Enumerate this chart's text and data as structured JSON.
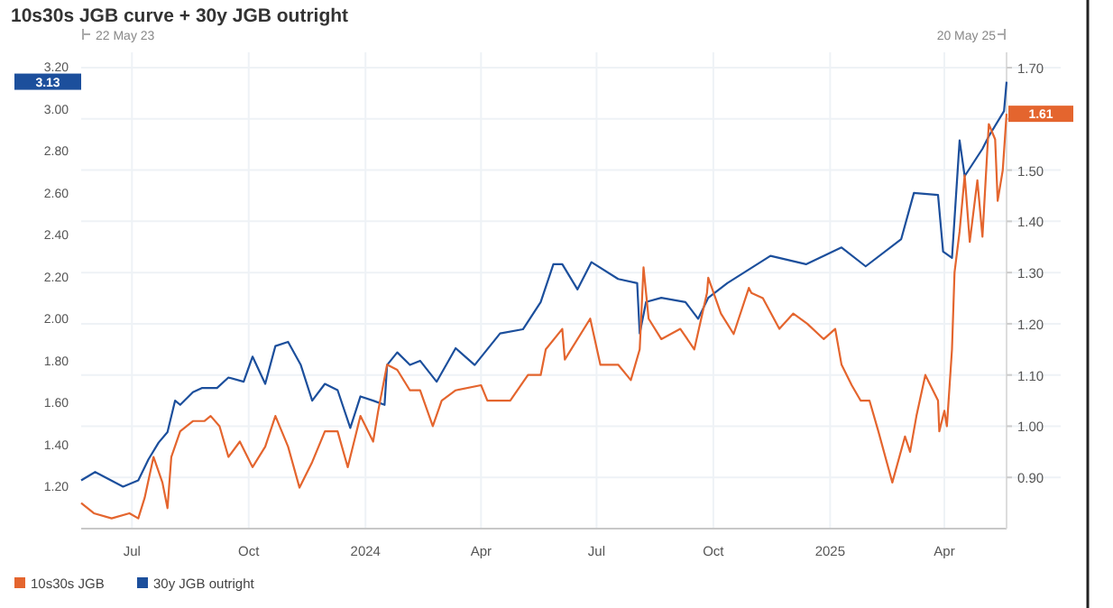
{
  "chart_data": {
    "type": "line",
    "title": "10s30s JGB curve + 30y JGB outright",
    "xlim": [
      "2023-05-22",
      "2025-05-20"
    ],
    "xticks": [
      {
        "value": "2023-07-01",
        "label": "Jul"
      },
      {
        "value": "2023-10-01",
        "label": "Oct"
      },
      {
        "value": "2024-01-01",
        "label": "2024"
      },
      {
        "value": "2024-04-01",
        "label": "Apr"
      },
      {
        "value": "2024-07-01",
        "label": "Jul"
      },
      {
        "value": "2024-10-01",
        "label": "Oct"
      },
      {
        "value": "2025-01-01",
        "label": "2025"
      },
      {
        "value": "2025-04-01",
        "label": "Apr"
      }
    ],
    "ylim": [
      1.0,
      3.27
    ],
    "yticks": [
      {
        "value": 1.2,
        "label": "1.20"
      },
      {
        "value": 1.4,
        "label": "1.40"
      },
      {
        "value": 1.6,
        "label": "1.60"
      },
      {
        "value": 1.8,
        "label": "1.80"
      },
      {
        "value": 2.0,
        "label": "2.00"
      },
      {
        "value": 2.2,
        "label": "2.20"
      },
      {
        "value": 2.4,
        "label": "2.40"
      },
      {
        "value": 2.6,
        "label": "2.60"
      },
      {
        "value": 2.8,
        "label": "2.80"
      },
      {
        "value": 3.0,
        "label": "3.00"
      },
      {
        "value": 3.2,
        "label": "3.20"
      }
    ],
    "y2lim": [
      0.8,
      1.73
    ],
    "y2ticks": [
      {
        "value": 0.9,
        "label": "0.90"
      },
      {
        "value": 1.0,
        "label": "1.00"
      },
      {
        "value": 1.1,
        "label": "1.10"
      },
      {
        "value": 1.2,
        "label": "1.20"
      },
      {
        "value": 1.3,
        "label": "1.30"
      },
      {
        "value": 1.4,
        "label": "1.40"
      },
      {
        "value": 1.5,
        "label": "1.50"
      },
      {
        "value": 1.6,
        "label": null
      },
      {
        "value": 1.7,
        "label": "1.70"
      }
    ],
    "grid": true,
    "legend": "bottom left",
    "line_style": "solid",
    "marker": "none",
    "annotations": [
      "22 May 23",
      "20 May 25",
      "3.13",
      "1.61"
    ],
    "series": [
      {
        "name": "30y JGB outright",
        "color": "#1c4f9c",
        "x": [
          "2023-05-22",
          "2023-06-02",
          "2023-06-24",
          "2023-07-06",
          "2023-07-14",
          "2023-07-22",
          "2023-07-29",
          "2023-08-04",
          "2023-08-08",
          "2023-08-18",
          "2023-08-25",
          "2023-09-06",
          "2023-09-15",
          "2023-09-27",
          "2023-10-04",
          "2023-10-14",
          "2023-10-22",
          "2023-11-01",
          "2023-11-11",
          "2023-11-20",
          "2023-11-30",
          "2023-12-10",
          "2023-12-20",
          "2023-12-28",
          "2024-01-07",
          "2024-01-16",
          "2024-01-18",
          "2024-01-26",
          "2024-02-05",
          "2024-02-13",
          "2024-02-26",
          "2024-03-12",
          "2024-03-27",
          "2024-04-16",
          "2024-05-04",
          "2024-05-18",
          "2024-05-28",
          "2024-06-04",
          "2024-06-16",
          "2024-06-27",
          "2024-07-18",
          "2024-08-02",
          "2024-08-04",
          "2024-08-09",
          "2024-08-21",
          "2024-09-09",
          "2024-09-19",
          "2024-09-27",
          "2024-10-12",
          "2024-11-15",
          "2024-12-13",
          "2025-01-10",
          "2025-01-29",
          "2025-02-26",
          "2025-03-08",
          "2025-03-27",
          "2025-03-31",
          "2025-04-07",
          "2025-04-13",
          "2025-04-17",
          "2025-05-01",
          "2025-05-06",
          "2025-05-18",
          "2025-05-20"
        ],
        "values": [
          1.23,
          1.27,
          1.2,
          1.23,
          1.33,
          1.41,
          1.46,
          1.61,
          1.59,
          1.65,
          1.67,
          1.67,
          1.72,
          1.7,
          1.82,
          1.69,
          1.87,
          1.89,
          1.78,
          1.61,
          1.69,
          1.66,
          1.48,
          1.63,
          1.61,
          1.59,
          1.78,
          1.84,
          1.78,
          1.8,
          1.7,
          1.86,
          1.78,
          1.93,
          1.95,
          2.08,
          2.26,
          2.26,
          2.14,
          2.27,
          2.19,
          2.17,
          1.93,
          2.08,
          2.1,
          2.08,
          2.0,
          2.1,
          2.17,
          2.3,
          2.26,
          2.34,
          2.25,
          2.38,
          2.6,
          2.59,
          2.32,
          2.29,
          2.85,
          2.68,
          2.81,
          2.87,
          2.99,
          3.13
        ]
      },
      {
        "name": "10s30s JGB",
        "color": "#e4652e",
        "axis": "y2",
        "x": [
          "2023-05-22",
          "2023-06-01",
          "2023-06-15",
          "2023-06-29",
          "2023-07-06",
          "2023-07-11",
          "2023-07-18",
          "2023-07-25",
          "2023-07-29",
          "2023-08-01",
          "2023-08-08",
          "2023-08-18",
          "2023-08-27",
          "2023-09-01",
          "2023-09-08",
          "2023-09-15",
          "2023-09-24",
          "2023-10-04",
          "2023-10-14",
          "2023-10-22",
          "2023-11-01",
          "2023-11-10",
          "2023-11-20",
          "2023-11-30",
          "2023-12-10",
          "2023-12-18",
          "2023-12-28",
          "2024-01-07",
          "2024-01-11",
          "2024-01-18",
          "2024-01-26",
          "2024-02-05",
          "2024-02-13",
          "2024-02-23",
          "2024-03-01",
          "2024-03-12",
          "2024-04-01",
          "2024-04-06",
          "2024-04-24",
          "2024-05-08",
          "2024-05-18",
          "2024-05-22",
          "2024-06-04",
          "2024-06-06",
          "2024-06-26",
          "2024-07-04",
          "2024-07-18",
          "2024-07-28",
          "2024-08-04",
          "2024-08-07",
          "2024-08-11",
          "2024-08-21",
          "2024-09-05",
          "2024-09-16",
          "2024-09-26",
          "2024-09-27",
          "2024-10-07",
          "2024-10-17",
          "2024-10-29",
          "2024-10-31",
          "2024-11-09",
          "2024-11-22",
          "2024-12-03",
          "2024-12-14",
          "2024-12-27",
          "2025-01-05",
          "2025-01-10",
          "2025-01-18",
          "2025-01-25",
          "2025-02-01",
          "2025-02-08",
          "2025-02-19",
          "2025-03-01",
          "2025-03-05",
          "2025-03-10",
          "2025-03-17",
          "2025-03-27",
          "2025-03-28",
          "2025-04-01",
          "2025-04-03",
          "2025-04-07",
          "2025-04-09",
          "2025-04-13",
          "2025-04-17",
          "2025-04-21",
          "2025-04-27",
          "2025-05-01",
          "2025-05-06",
          "2025-05-11",
          "2025-05-13",
          "2025-05-17",
          "2025-05-20"
        ],
        "values": [
          0.85,
          0.83,
          0.82,
          0.83,
          0.82,
          0.86,
          0.94,
          0.89,
          0.84,
          0.94,
          0.99,
          1.01,
          1.01,
          1.02,
          1.0,
          0.94,
          0.97,
          0.92,
          0.96,
          1.02,
          0.96,
          0.88,
          0.93,
          0.99,
          0.99,
          0.92,
          1.02,
          0.97,
          1.03,
          1.12,
          1.11,
          1.07,
          1.07,
          1.0,
          1.05,
          1.07,
          1.08,
          1.05,
          1.05,
          1.1,
          1.1,
          1.15,
          1.19,
          1.13,
          1.21,
          1.12,
          1.12,
          1.09,
          1.15,
          1.31,
          1.21,
          1.17,
          1.19,
          1.15,
          1.26,
          1.29,
          1.22,
          1.18,
          1.27,
          1.26,
          1.25,
          1.19,
          1.22,
          1.2,
          1.17,
          1.19,
          1.12,
          1.08,
          1.05,
          1.05,
          0.99,
          0.89,
          0.98,
          0.95,
          1.02,
          1.1,
          1.05,
          0.99,
          1.03,
          1.0,
          1.15,
          1.3,
          1.38,
          1.49,
          1.36,
          1.48,
          1.37,
          1.59,
          1.56,
          1.44,
          1.5,
          1.61
        ]
      }
    ]
  }
}
